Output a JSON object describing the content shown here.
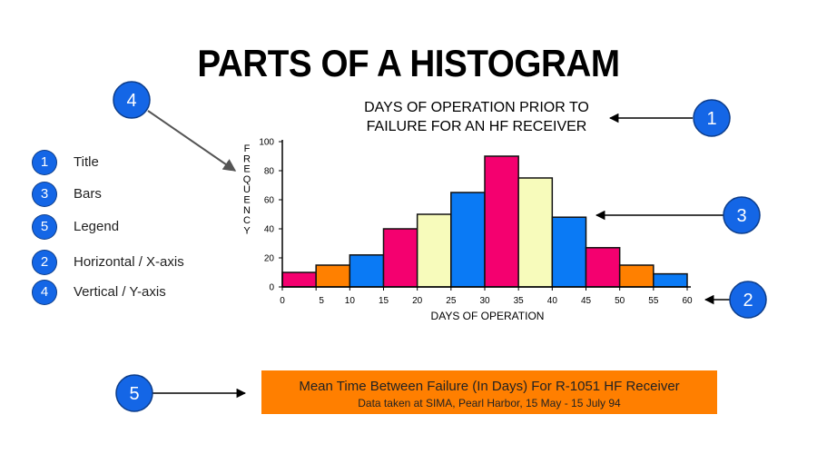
{
  "page": {
    "title": "PARTS OF A HISTOGRAM"
  },
  "key": [
    {
      "num": "1",
      "label": "Title"
    },
    {
      "num": "3",
      "label": "Bars"
    },
    {
      "num": "5",
      "label": "Legend"
    },
    {
      "num": "2",
      "label": "Horizontal / X-axis"
    },
    {
      "num": "4",
      "label": "Vertical / Y-axis"
    }
  ],
  "callouts": {
    "title": "1",
    "bars": "3",
    "x_axis": "2",
    "y_axis": "4",
    "legend": "5"
  },
  "legend_box": {
    "line1": "Mean Time Between Failure (In Days) For R-1051 HF Receiver",
    "line2": "Data taken at SIMA, Pearl Harbor, 15 May - 15 July 94"
  },
  "colors": {
    "callout_blue": "#1466e6",
    "pink": "#f4006f",
    "orange": "#ff8000",
    "blue": "#0a7af5",
    "yellow": "#f7fbbb",
    "legend_bg": "#ff7f00"
  },
  "chart_data": {
    "type": "bar",
    "title": "DAYS OF OPERATION PRIOR TO\nFAILURE FOR AN HF RECEIVER",
    "xlabel": "DAYS OF OPERATION",
    "ylabel": "FREQUENCY",
    "xlim": [
      0,
      60
    ],
    "ylim": [
      0,
      100
    ],
    "x_ticks": [
      0,
      5,
      10,
      15,
      20,
      25,
      30,
      35,
      40,
      45,
      50,
      55,
      60
    ],
    "y_ticks": [
      0,
      20,
      40,
      60,
      80,
      100
    ],
    "bins": [
      {
        "start": 0,
        "end": 5,
        "value": 10,
        "color": "pink"
      },
      {
        "start": 5,
        "end": 10,
        "value": 15,
        "color": "orange"
      },
      {
        "start": 10,
        "end": 15,
        "value": 22,
        "color": "blue"
      },
      {
        "start": 15,
        "end": 20,
        "value": 40,
        "color": "pink"
      },
      {
        "start": 20,
        "end": 25,
        "value": 50,
        "color": "yellow"
      },
      {
        "start": 25,
        "end": 30,
        "value": 65,
        "color": "blue"
      },
      {
        "start": 30,
        "end": 35,
        "value": 90,
        "color": "pink"
      },
      {
        "start": 35,
        "end": 40,
        "value": 75,
        "color": "yellow"
      },
      {
        "start": 40,
        "end": 45,
        "value": 48,
        "color": "blue"
      },
      {
        "start": 45,
        "end": 50,
        "value": 27,
        "color": "pink"
      },
      {
        "start": 50,
        "end": 55,
        "value": 15,
        "color": "orange"
      },
      {
        "start": 55,
        "end": 60,
        "value": 9,
        "color": "blue"
      }
    ],
    "grid": false,
    "legend": "none"
  }
}
